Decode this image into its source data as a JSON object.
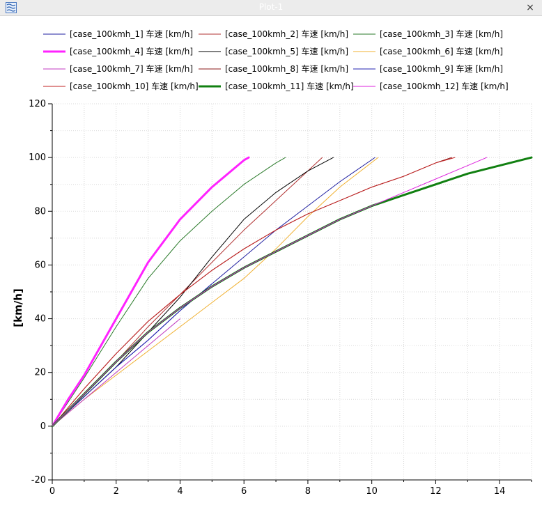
{
  "window": {
    "title": "Plot-1",
    "close_glyph": "×",
    "icon": "wave-lines-icon"
  },
  "colors": {
    "grid": "#d9d9d9",
    "axis": "#000000"
  },
  "chart_data": {
    "type": "line",
    "title": "",
    "xlabel": "",
    "ylabel": "[km/h]",
    "xlim": [
      0,
      15
    ],
    "ylim": [
      -20,
      120
    ],
    "xticks": [
      0,
      2,
      4,
      6,
      8,
      10,
      12,
      14
    ],
    "yticks": [
      -20,
      0,
      20,
      40,
      60,
      80,
      100,
      120
    ],
    "grid": true,
    "legend_position": "top",
    "series": [
      {
        "name": "[case_100kmh_1] 车速 [km/h]",
        "color": "#1f1fa0",
        "width": 1,
        "x": [
          0,
          1,
          2,
          3,
          4,
          5,
          6,
          7,
          8,
          9,
          10.1
        ],
        "y": [
          0,
          11,
          22,
          32,
          43,
          53,
          63,
          73,
          82,
          91,
          100
        ]
      },
      {
        "name": "[case_100kmh_2] 车速 [km/h]",
        "color": "#b03030",
        "width": 1,
        "x": [
          0,
          1,
          2,
          3,
          4,
          5,
          6,
          7,
          8,
          8.45
        ],
        "y": [
          0,
          12,
          24,
          37,
          49,
          61,
          73,
          84,
          95,
          100
        ]
      },
      {
        "name": "[case_100kmh_3] 车速 [km/h]",
        "color": "#2a7a2a",
        "width": 1,
        "x": [
          0,
          0.5,
          1,
          2,
          3,
          4,
          5,
          6,
          7,
          7.3
        ],
        "y": [
          0,
          9,
          18,
          37,
          55,
          69,
          80,
          90,
          98,
          100
        ]
      },
      {
        "name": "[case_100kmh_4] 车速 [km/h]",
        "color": "#ff22ff",
        "width": 3,
        "x": [
          0,
          0.5,
          1,
          2,
          3,
          4,
          5,
          6,
          6.15
        ],
        "y": [
          0,
          10,
          19,
          40,
          61,
          77,
          89,
          99,
          100
        ]
      },
      {
        "name": "[case_100kmh_5] 车速 [km/h]",
        "color": "#000000",
        "width": 1,
        "x": [
          0,
          1,
          2,
          3,
          4,
          5,
          6,
          7,
          8,
          8.8
        ],
        "y": [
          0,
          11,
          22,
          35,
          48,
          63,
          77,
          87,
          95,
          100
        ]
      },
      {
        "name": "[case_100kmh_6] 车速 [km/h]",
        "color": "#f0b030",
        "width": 1,
        "x": [
          0,
          1,
          2,
          3,
          4,
          5,
          6,
          7,
          8,
          9,
          10.2
        ],
        "y": [
          0,
          10,
          19,
          28,
          37,
          46,
          55,
          66,
          78,
          89,
          100
        ]
      },
      {
        "name": "[case_100kmh_7] 车速 [km/h]",
        "color": "#c03ac0",
        "width": 1,
        "x": [
          0,
          1,
          2,
          3,
          4
        ],
        "y": [
          0,
          10,
          20,
          30,
          40
        ]
      },
      {
        "name": "[case_100kmh_8] 车速 [km/h]",
        "color": "#8b1a1a",
        "width": 1,
        "x": [
          0,
          1,
          2,
          3,
          4,
          5,
          6,
          7,
          8,
          9,
          10,
          11,
          12,
          12.5
        ],
        "y": [
          0,
          14,
          27,
          39,
          49,
          58,
          66,
          73,
          79,
          84,
          89,
          93,
          98,
          100
        ]
      },
      {
        "name": "[case_100kmh_9] 车速 [km/h]",
        "color": "#2020b0",
        "width": 1,
        "x": [
          0,
          1,
          2,
          3,
          4,
          5
        ],
        "y": [
          0,
          11,
          22,
          32,
          43,
          53
        ]
      },
      {
        "name": "[case_100kmh_10] 车速 [km/h]",
        "color": "#c02020",
        "width": 1,
        "x": [
          0,
          1,
          2,
          3,
          4,
          5,
          6,
          7,
          8,
          9,
          10,
          11,
          12,
          12.6
        ],
        "y": [
          0,
          14,
          27,
          39,
          49,
          58,
          66,
          73,
          79,
          84,
          89,
          93,
          98,
          100
        ]
      },
      {
        "name": "[case_100kmh_11] 车速 [km/h]",
        "color": "#118011",
        "width": 3,
        "x": [
          0,
          1,
          2,
          3,
          4,
          5,
          6,
          7,
          8,
          9,
          10,
          11,
          12,
          13,
          14,
          15
        ],
        "y": [
          0,
          12,
          24,
          35,
          44,
          52,
          59,
          65,
          71,
          77,
          82,
          86,
          90,
          94,
          97,
          100
        ]
      },
      {
        "name": "[case_100kmh_12] 车速 [km/h]",
        "color": "#dd22dd",
        "width": 1,
        "x": [
          0,
          1,
          2,
          3,
          4,
          5,
          6,
          7,
          8,
          9,
          10,
          11,
          12,
          13,
          13.6
        ],
        "y": [
          0,
          12,
          24,
          35,
          44,
          52,
          59,
          65,
          71,
          77,
          82,
          87,
          92,
          97,
          100
        ]
      }
    ]
  }
}
